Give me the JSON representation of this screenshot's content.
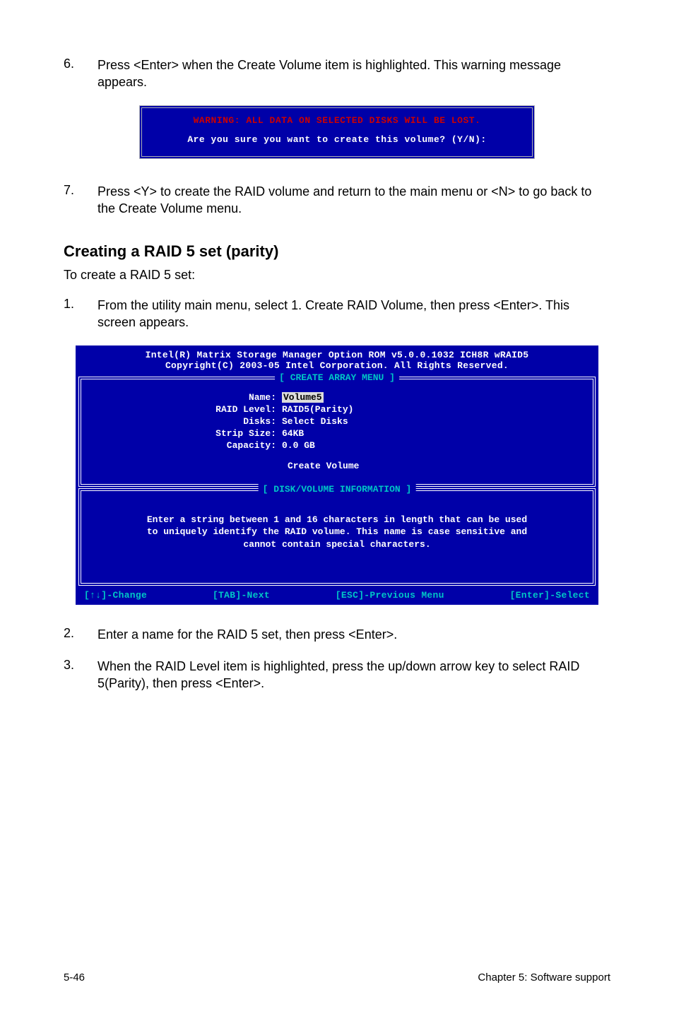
{
  "steps_top": [
    {
      "num": "6.",
      "text": "Press <Enter> when the Create Volume item is highlighted. This warning message appears."
    },
    {
      "num": "7.",
      "text": "Press <Y> to create the RAID volume and return to the main menu or <N> to go back to the Create Volume menu."
    }
  ],
  "warning_box": {
    "warn": "WARNING: ALL DATA ON SELECTED DISKS WILL BE LOST.",
    "prompt": "Are you sure you want to create this volume? (Y/N):"
  },
  "section": {
    "title": "Creating a RAID 5 set (parity)",
    "sub": "To create a RAID 5 set:"
  },
  "steps_mid": [
    {
      "num": "1.",
      "text": "From the utility main menu, select 1. Create RAID Volume, then press <Enter>. This screen appears."
    }
  ],
  "bios": {
    "header1": "Intel(R) Matrix Storage Manager Option ROM v5.0.0.1032 ICH8R wRAID5",
    "header2": "Copyright(C) 2003-05 Intel Corporation. All Rights Reserved.",
    "panel1": "[ CREATE ARRAY MENU ]",
    "panel2": "[ DISK/VOLUME INFORMATION ]",
    "fields": {
      "name_label": "Name:",
      "name_val": "Volume5",
      "raid_label": "RAID Level:",
      "raid_val": "RAID5(Parity)",
      "disks_label": "Disks:",
      "disks_val": "Select Disks",
      "strip_label": "Strip Size:",
      "strip_val": "64KB",
      "cap_label": "Capacity:",
      "cap_val": "0.0  GB",
      "create": "Create Volume"
    },
    "info_l1": "Enter a string between 1 and 16 characters in length that can be used",
    "info_l2": "to uniquely identify the RAID volume. This name is case sensitive and",
    "info_l3": "cannot contain special characters.",
    "bar": {
      "change": "[↑↓]-Change",
      "next": "[TAB]-Next",
      "prev": "[ESC]-Previous Menu",
      "select": "[Enter]-Select"
    }
  },
  "steps_bottom": [
    {
      "num": "2.",
      "text": "Enter a name for the RAID 5 set, then press <Enter>."
    },
    {
      "num": "3.",
      "text": "When the RAID Level item is highlighted, press the up/down arrow key to select RAID 5(Parity), then press <Enter>."
    }
  ],
  "footer": {
    "left": "5-46",
    "right": "Chapter 5: Software support"
  },
  "colors": {
    "bios_bg": "#0000a8",
    "title_text": "#00c6c6",
    "warn_text": "#cc0000",
    "hl_bg": "#dcdcdc"
  }
}
